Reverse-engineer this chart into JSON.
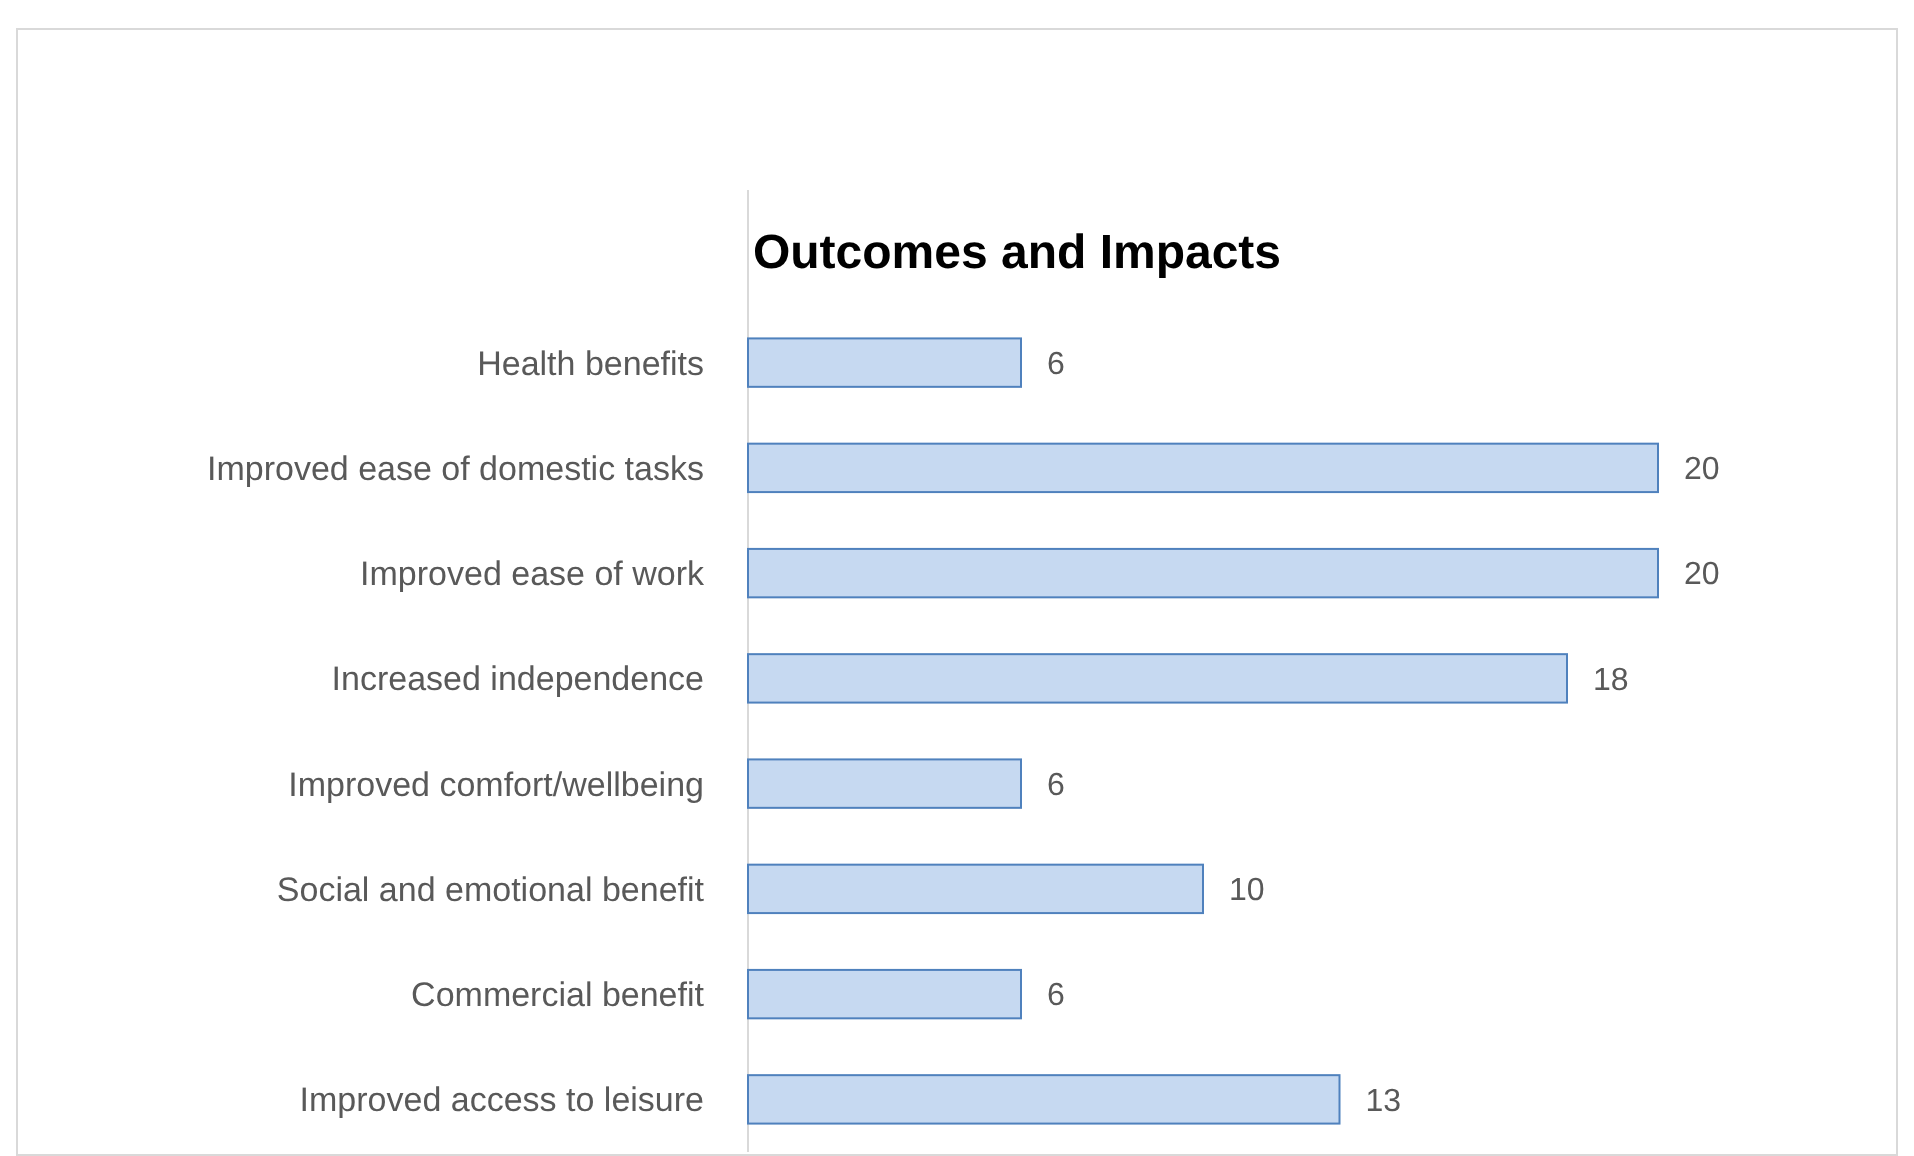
{
  "chart_data": {
    "type": "bar",
    "orientation": "horizontal",
    "title": "Outcomes and Impacts",
    "categories": [
      "Health benefits",
      "Improved ease of domestic tasks",
      "Improved ease of work",
      "Increased independence",
      "Improved comfort/wellbeing",
      "Social and emotional benefit",
      "Commercial benefit",
      "Improved access to leisure"
    ],
    "values": [
      6,
      20,
      20,
      18,
      6,
      10,
      6,
      13
    ],
    "color": "#c6d9f1",
    "data_labels": true
  }
}
